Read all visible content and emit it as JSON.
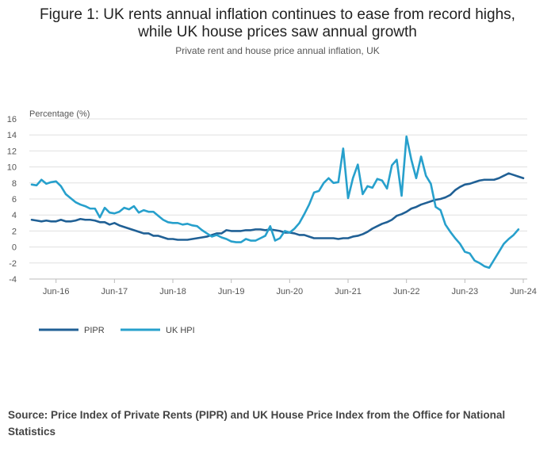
{
  "title": {
    "line1": "Figure 1: UK rents annual inflation continues to ease from record highs,",
    "line2": "while UK house prices saw annual growth"
  },
  "subtitle": "Private rent and house price annual inflation, UK",
  "source": "Source: Price Index of Private Rents (PIPR) and UK House Price Index from the Office for National Statistics",
  "colors": {
    "pipr": "#206095",
    "ukhpi": "#27a0cc",
    "grid": "#e0e0e0",
    "axis": "#bbbbbb"
  },
  "chart_data": {
    "type": "line",
    "title": "Figure 1: UK rents annual inflation continues to ease from record highs, while UK house prices saw annual growth",
    "ylabel": "Percentage (%)",
    "xlabel": "",
    "ylim": [
      -4,
      16
    ],
    "yticks": [
      -4,
      -2,
      0,
      2,
      4,
      6,
      8,
      10,
      12,
      14,
      16
    ],
    "x_start": "Jan-16",
    "x_end": "Jun-24",
    "x_ticks": [
      {
        "label": "Jun-16",
        "index": 5
      },
      {
        "label": "Jun-17",
        "index": 17
      },
      {
        "label": "Jun-18",
        "index": 29
      },
      {
        "label": "Jun-19",
        "index": 41
      },
      {
        "label": "Jun-20",
        "index": 53
      },
      {
        "label": "Jun-21",
        "index": 65
      },
      {
        "label": "Jun-22",
        "index": 77
      },
      {
        "label": "Jun-23",
        "index": 89
      },
      {
        "label": "Jun-24",
        "index": 101
      }
    ],
    "grid": true,
    "legend_position": "bottom-left",
    "series": [
      {
        "name": "PIPR",
        "values": [
          3.4,
          3.3,
          3.2,
          3.3,
          3.2,
          3.2,
          3.4,
          3.2,
          3.2,
          3.3,
          3.5,
          3.4,
          3.4,
          3.3,
          3.1,
          3.1,
          2.8,
          3.0,
          2.7,
          2.5,
          2.3,
          2.1,
          1.9,
          1.7,
          1.7,
          1.4,
          1.4,
          1.2,
          1.0,
          1.0,
          0.9,
          0.9,
          0.9,
          1.0,
          1.1,
          1.2,
          1.3,
          1.5,
          1.7,
          1.7,
          2.1,
          2.0,
          2.0,
          2.0,
          2.1,
          2.1,
          2.2,
          2.2,
          2.1,
          2.2,
          2.1,
          2.0,
          1.8,
          1.8,
          1.7,
          1.5,
          1.5,
          1.3,
          1.1,
          1.1,
          1.1,
          1.1,
          1.1,
          1.0,
          1.1,
          1.1,
          1.3,
          1.4,
          1.6,
          1.9,
          2.3,
          2.6,
          2.9,
          3.1,
          3.4,
          3.9,
          4.1,
          4.4,
          4.8,
          5.0,
          5.3,
          5.5,
          5.7,
          5.9,
          6.0,
          6.2,
          6.5,
          7.1,
          7.5,
          7.8,
          7.9,
          8.1,
          8.3,
          8.4,
          8.4,
          8.4,
          8.6,
          8.9,
          9.2,
          9.0,
          8.8,
          8.6
        ]
      },
      {
        "name": "UK HPI",
        "values": [
          7.8,
          7.7,
          8.4,
          7.9,
          8.1,
          8.2,
          7.6,
          6.6,
          6.1,
          5.6,
          5.3,
          5.1,
          4.8,
          4.8,
          3.7,
          4.9,
          4.3,
          4.2,
          4.4,
          4.9,
          4.7,
          5.1,
          4.3,
          4.6,
          4.4,
          4.4,
          3.9,
          3.4,
          3.1,
          3.0,
          3.0,
          2.8,
          2.9,
          2.7,
          2.6,
          2.1,
          1.7,
          1.3,
          1.5,
          1.2,
          1.0,
          0.7,
          0.6,
          0.6,
          1.0,
          0.8,
          0.8,
          1.1,
          1.4,
          2.6,
          0.8,
          1.1,
          2.0,
          1.8,
          2.3,
          3.0,
          4.1,
          5.3,
          6.8,
          7.0,
          8.0,
          8.6,
          8.0,
          8.1,
          12.3,
          6.1,
          8.6,
          10.3,
          6.6,
          7.6,
          7.4,
          8.5,
          8.3,
          7.3,
          10.2,
          10.9,
          6.4,
          13.8,
          10.9,
          8.6,
          11.3,
          8.9,
          7.9,
          5.0,
          4.6,
          2.8,
          1.9,
          1.1,
          0.4,
          -0.6,
          -0.8,
          -1.7,
          -2.0,
          -2.4,
          -2.6,
          -1.6,
          -0.6,
          0.4,
          1.0,
          1.5,
          2.2
        ]
      }
    ]
  }
}
